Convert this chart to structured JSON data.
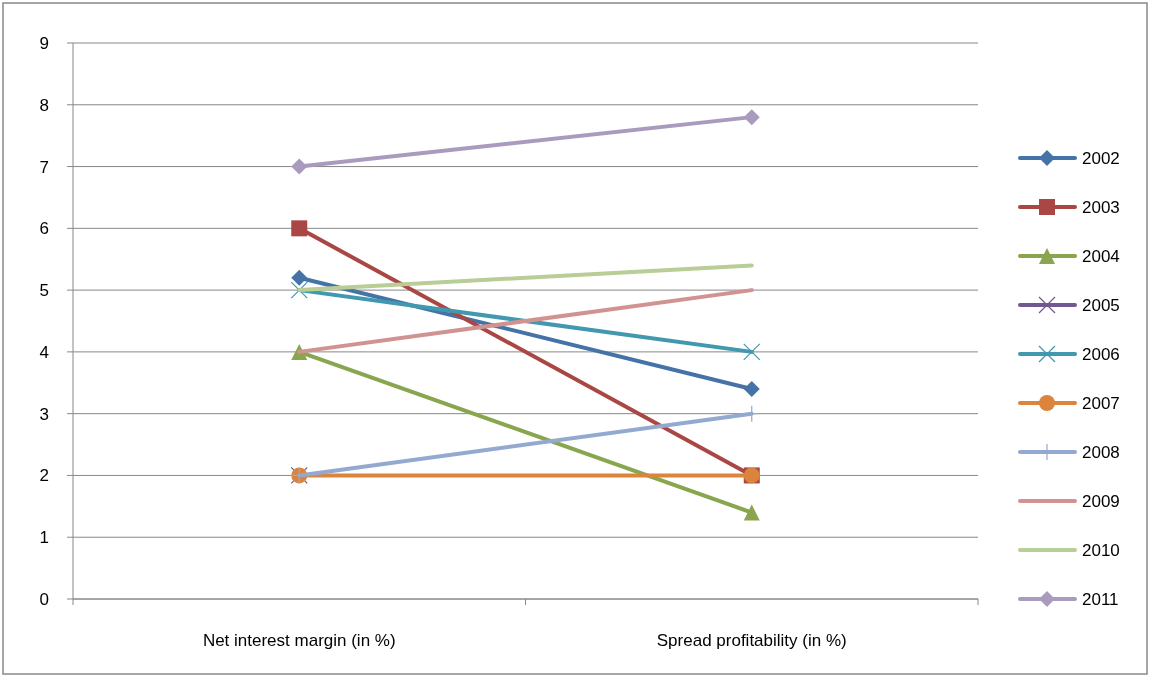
{
  "chart_data": {
    "type": "line",
    "categories": [
      "Net interest margin (in %)",
      "Spread profitability (in %)"
    ],
    "series": [
      {
        "name": "2002",
        "color": "#4572a7",
        "marker": "diamond",
        "values": [
          5.2,
          3.4
        ]
      },
      {
        "name": "2003",
        "color": "#aa4643",
        "marker": "square",
        "values": [
          6,
          2
        ]
      },
      {
        "name": "2004",
        "color": "#89a54e",
        "marker": "triangle",
        "values": [
          4,
          1.4
        ]
      },
      {
        "name": "2005",
        "color": "#71588f",
        "marker": "cross",
        "values": [
          2,
          null
        ]
      },
      {
        "name": "2006",
        "color": "#4198af",
        "marker": "cross",
        "values": [
          5,
          4
        ]
      },
      {
        "name": "2007",
        "color": "#db843d",
        "marker": "circle",
        "values": [
          2,
          2
        ]
      },
      {
        "name": "2008",
        "color": "#93a9cf",
        "marker": "plus",
        "values": [
          2,
          3
        ]
      },
      {
        "name": "2009",
        "color": "#d19392",
        "marker": "none",
        "values": [
          4,
          5
        ]
      },
      {
        "name": "2010",
        "color": "#b9cd96",
        "marker": "none",
        "values": [
          5,
          5.4
        ]
      },
      {
        "name": "2011",
        "color": "#a99bbd",
        "marker": "diamond",
        "values": [
          7,
          7.8
        ]
      }
    ],
    "ylim": [
      0,
      9
    ],
    "yticks": [
      0,
      1,
      2,
      3,
      4,
      5,
      6,
      7,
      8,
      9
    ],
    "grid": "y",
    "legend": "right",
    "line_style": "solid"
  }
}
